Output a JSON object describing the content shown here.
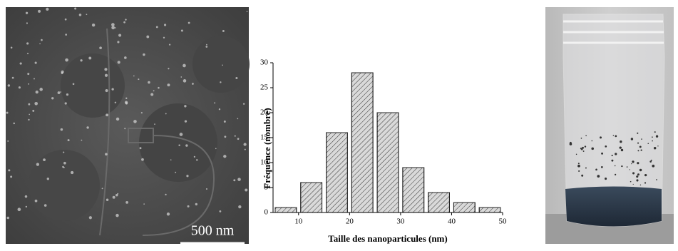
{
  "chart_data": {
    "type": "histogram",
    "xlabel": "Taille des nanoparticules (nm)",
    "ylabel": "Fréquence (nombre)",
    "bins": [
      5,
      10,
      15,
      20,
      25,
      30,
      35,
      40,
      45,
      50
    ],
    "values": [
      1,
      6,
      16,
      28,
      20,
      9,
      4,
      2,
      1
    ],
    "xlim": [
      5,
      50
    ],
    "xticks": [
      10,
      20,
      30,
      40,
      50
    ],
    "ylim": [
      0,
      30
    ],
    "yticks": [
      0,
      5,
      10,
      15,
      20,
      25,
      30
    ],
    "color": "#d9d9d9",
    "hatch": true
  },
  "sem_image": {
    "scale_bar": "500 nm"
  }
}
